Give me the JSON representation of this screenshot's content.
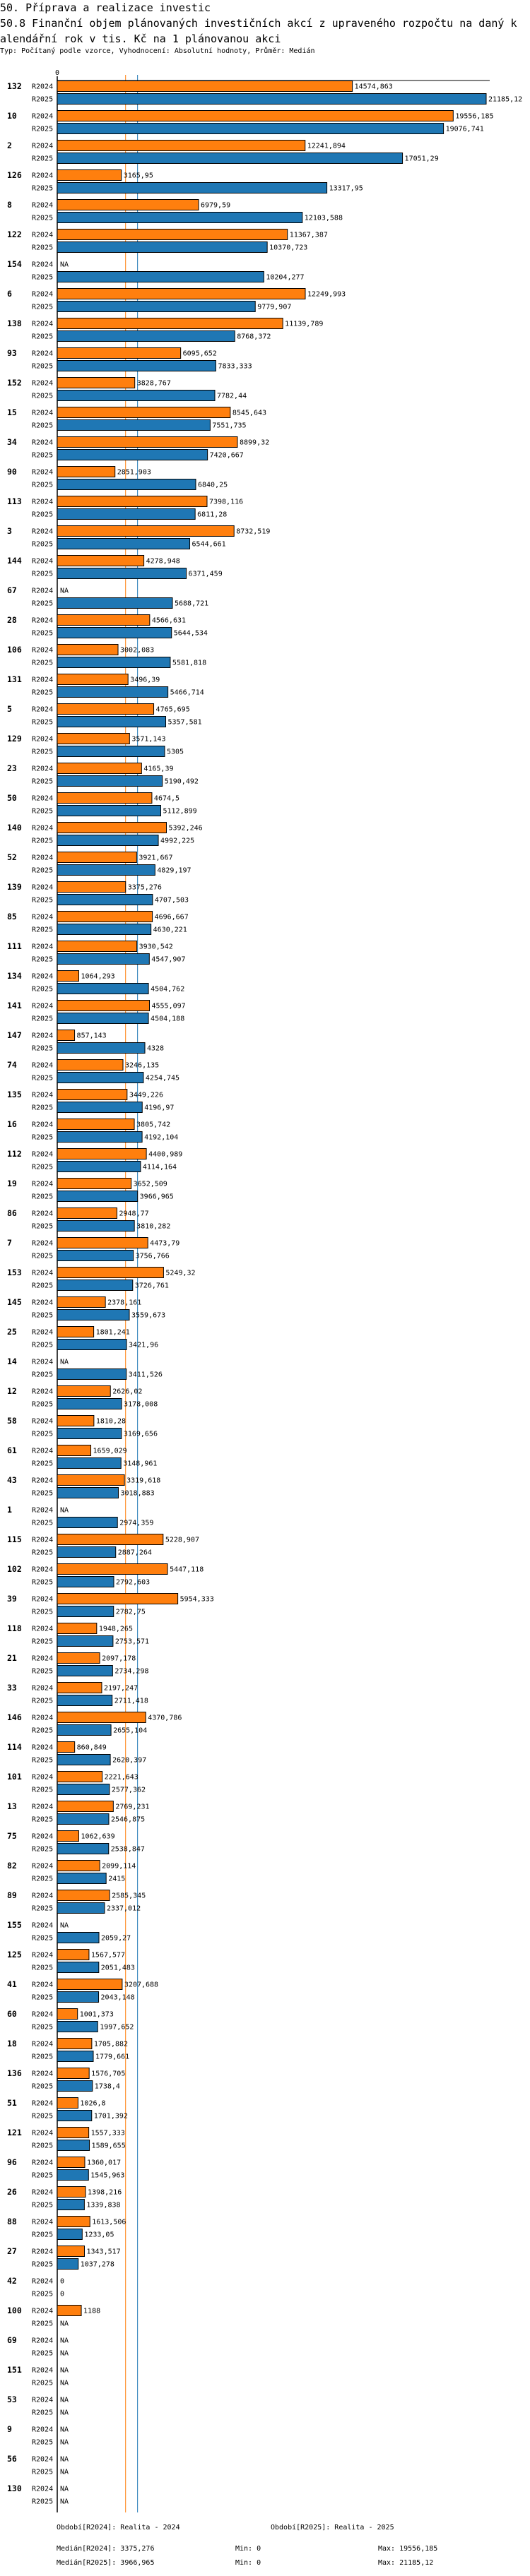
{
  "header": {
    "section": "50. Příprava a realizace investic",
    "title": "50.8 Finanční objem plánovaných investičních akcí z upraveného rozpočtu na daný kalendářní rok v tis. Kč na 1 plánovanou akci",
    "subtitle": "Typ: Počítaný podle vzorce, Vyhodnocení: Absolutní hodnoty, Průměr: Medián"
  },
  "chart_data": {
    "type": "bar",
    "orientation": "horizontal",
    "axis_zero_label": "0",
    "xlim": [
      0,
      21185.12
    ],
    "na_label": "NA",
    "categories": [
      "132",
      "10",
      "2",
      "126",
      "8",
      "122",
      "154",
      "6",
      "138",
      "93",
      "152",
      "15",
      "34",
      "90",
      "113",
      "3",
      "144",
      "67",
      "28",
      "106",
      "131",
      "5",
      "129",
      "23",
      "50",
      "140",
      "52",
      "139",
      "85",
      "111",
      "134",
      "141",
      "147",
      "74",
      "135",
      "16",
      "112",
      "19",
      "86",
      "7",
      "153",
      "145",
      "25",
      "14",
      "12",
      "58",
      "61",
      "43",
      "1",
      "115",
      "102",
      "39",
      "118",
      "21",
      "33",
      "146",
      "114",
      "101",
      "13",
      "75",
      "82",
      "89",
      "155",
      "125",
      "41",
      "60",
      "18",
      "136",
      "51",
      "121",
      "96",
      "26",
      "88",
      "27",
      "42",
      "100",
      "69",
      "151",
      "53",
      "9",
      "56",
      "130"
    ],
    "series": [
      {
        "name": "R2024",
        "color": "#ff7f0e",
        "median": 3375.276,
        "values": [
          14574.863,
          19556.185,
          12241.894,
          3165.95,
          6979.59,
          11367.387,
          null,
          12249.993,
          11139.789,
          6095.652,
          3828.767,
          8545.643,
          8899.32,
          2851.903,
          7398.116,
          8732.519,
          4278.948,
          null,
          4566.631,
          3002.083,
          3496.39,
          4765.695,
          3571.143,
          4165.39,
          4674.5,
          5392.246,
          3921.667,
          3375.276,
          4696.667,
          3930.542,
          1064.293,
          4555.097,
          857.143,
          3246.135,
          3449.226,
          3805.742,
          4400.989,
          3652.509,
          2948.77,
          4473.79,
          5249.32,
          2378.161,
          1801.241,
          null,
          2626.02,
          1810.28,
          1659.029,
          3319.618,
          null,
          5228.907,
          5447.118,
          5954.333,
          1948.265,
          2097.178,
          2197.247,
          4370.786,
          860.849,
          2221.643,
          2769.231,
          1062.639,
          2099.114,
          2585.345,
          null,
          1567.577,
          3207.688,
          1001.373,
          1705.882,
          1576.705,
          1026.8,
          1557.333,
          1360.017,
          1398.216,
          1613.506,
          1343.517,
          0,
          1188,
          null,
          null,
          null,
          null,
          null,
          null
        ]
      },
      {
        "name": "R2025",
        "color": "#1f77b4",
        "median": 3966.965,
        "values": [
          21185.12,
          19076.741,
          17051.29,
          13317.95,
          12103.588,
          10370.723,
          10204.277,
          9779.907,
          8768.372,
          7833.333,
          7782.44,
          7551.735,
          7420.667,
          6840.25,
          6811.28,
          6544.661,
          6371.459,
          5688.721,
          5644.534,
          5581.818,
          5466.714,
          5357.581,
          5305,
          5190.492,
          5112.899,
          4992.225,
          4829.197,
          4707.503,
          4630.221,
          4547.907,
          4504.762,
          4504.188,
          4328,
          4254.745,
          4196.97,
          4192.104,
          4114.164,
          3966.965,
          3810.282,
          3756.766,
          3726.761,
          3559.673,
          3421.96,
          3411.526,
          3178.008,
          3169.656,
          3148.961,
          3018.883,
          2974.359,
          2887.264,
          2792.603,
          2782.75,
          2753.571,
          2734.298,
          2711.418,
          2655.104,
          2620.397,
          2577.362,
          2546.875,
          2538.847,
          2415,
          2337.012,
          2059.27,
          2051.483,
          2043.148,
          1997.652,
          1779.661,
          1738.4,
          1701.392,
          1589.655,
          1545.963,
          1339.838,
          1233.05,
          1037.278,
          0,
          null,
          null,
          null,
          null,
          null,
          null,
          null
        ]
      }
    ],
    "legend": {
      "r2024": "Období[R2024]: Realita - 2024",
      "r2025": "Období[R2025]: Realita - 2025"
    },
    "stats": {
      "median_r2024": "Medián[R2024]: 3375,276",
      "min_r2024": "Min: 0",
      "max_r2024": "Max: 19556,185",
      "median_r2025": "Medián[R2025]: 3966,965",
      "min_r2025": "Min: 0",
      "max_r2025": "Max: 21185,12"
    }
  }
}
